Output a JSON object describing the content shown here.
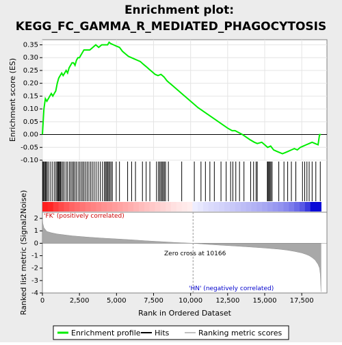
{
  "chart_data": {
    "type": "line",
    "title_line1": "Enrichment plot:",
    "title_line2": "KEGG_FC_GAMMA_R_MEDIATED_PHAGOCYTOSIS",
    "ylabel_top": "Enrichment score (ES)",
    "ylabel_bottom": "Ranked list metric (Signal2Noise)",
    "xlabel": "Rank in Ordered Dataset",
    "xlim": [
      0,
      19200
    ],
    "es_ylim": [
      -0.1,
      0.37
    ],
    "metric_ylim": [
      -4,
      2.5
    ],
    "x_ticks": [
      0,
      2500,
      5000,
      7500,
      10000,
      12500,
      15000,
      17500
    ],
    "x_tick_labels": [
      "0",
      "2,500",
      "5,000",
      "7,500",
      "10,000",
      "12,500",
      "15,000",
      "17,500"
    ],
    "es_y_ticks": [
      -0.1,
      -0.05,
      0.0,
      0.05,
      0.1,
      0.15,
      0.2,
      0.25,
      0.3,
      0.35
    ],
    "es_y_tick_labels": [
      "-0.10",
      "-0.05",
      "0.00",
      "0.05",
      "0.10",
      "0.15",
      "0.20",
      "0.25",
      "0.30",
      "0.35"
    ],
    "metric_y_ticks": [
      2,
      1,
      0,
      -1,
      -2,
      -3,
      -4
    ],
    "metric_y_tick_labels": [
      "2",
      "1",
      "0",
      "-1",
      "-2",
      "-3",
      "-4"
    ],
    "enrichment_profile": {
      "name": "Enrichment profile",
      "color": "#00ee00",
      "x": [
        0,
        50,
        100,
        200,
        300,
        400,
        500,
        600,
        700,
        800,
        900,
        1000,
        1100,
        1200,
        1300,
        1400,
        1500,
        1600,
        1700,
        1800,
        1900,
        2000,
        2100,
        2200,
        2300,
        2400,
        2500,
        2600,
        2700,
        2800,
        2900,
        3000,
        3200,
        3400,
        3600,
        3800,
        4000,
        4200,
        4400,
        4500,
        4600,
        4800,
        5000,
        5200,
        5400,
        5600,
        5800,
        6000,
        6200,
        6400,
        6600,
        6800,
        7000,
        7200,
        7400,
        7600,
        7800,
        8000,
        8200,
        8400,
        8600,
        8800,
        9000,
        9500,
        10000,
        10500,
        11000,
        11500,
        12000,
        12500,
        12800,
        13000,
        13500,
        14000,
        14300,
        14500,
        14800,
        15000,
        15200,
        15400,
        15600,
        15800,
        16000,
        16200,
        16400,
        16600,
        16800,
        17000,
        17200,
        17400,
        17600,
        17800,
        18000,
        18200,
        18400,
        18600,
        18700,
        18800
      ],
      "y": [
        0.0,
        0.05,
        0.1,
        0.14,
        0.13,
        0.14,
        0.15,
        0.16,
        0.15,
        0.16,
        0.17,
        0.2,
        0.22,
        0.23,
        0.24,
        0.23,
        0.24,
        0.25,
        0.24,
        0.26,
        0.27,
        0.28,
        0.28,
        0.27,
        0.29,
        0.3,
        0.3,
        0.31,
        0.32,
        0.33,
        0.33,
        0.33,
        0.33,
        0.34,
        0.35,
        0.34,
        0.35,
        0.35,
        0.35,
        0.36,
        0.355,
        0.35,
        0.345,
        0.34,
        0.325,
        0.315,
        0.305,
        0.3,
        0.295,
        0.29,
        0.285,
        0.275,
        0.265,
        0.255,
        0.245,
        0.235,
        0.23,
        0.235,
        0.225,
        0.21,
        0.2,
        0.19,
        0.18,
        0.155,
        0.13,
        0.105,
        0.085,
        0.065,
        0.045,
        0.025,
        0.015,
        0.015,
        0.0,
        -0.02,
        -0.03,
        -0.035,
        -0.03,
        -0.04,
        -0.05,
        -0.045,
        -0.06,
        -0.065,
        -0.07,
        -0.075,
        -0.07,
        -0.065,
        -0.06,
        -0.055,
        -0.06,
        -0.05,
        -0.045,
        -0.04,
        -0.035,
        -0.03,
        -0.035,
        -0.04,
        0.0,
        0.0
      ]
    },
    "hits": [
      30,
      80,
      140,
      200,
      260,
      330,
      430,
      560,
      690,
      820,
      920,
      1000,
      1060,
      1110,
      1160,
      1220,
      1290,
      1380,
      1470,
      1600,
      1700,
      1820,
      1920,
      2010,
      2100,
      2190,
      2290,
      2410,
      2520,
      2620,
      2720,
      2810,
      2920,
      3030,
      3140,
      3260,
      3370,
      3490,
      3620,
      3760,
      3900,
      4050,
      4180,
      4260,
      4330,
      4400,
      4470,
      4550,
      4630,
      4720,
      4980,
      5200,
      5750,
      6020,
      6280,
      6750,
      7000,
      7250,
      7700,
      7830,
      7920,
      8000,
      8080,
      8150,
      8230,
      8310,
      8500,
      9400,
      10250,
      10700,
      11000,
      11300,
      11600,
      12050,
      12400,
      12700,
      12850,
      13050,
      13300,
      13600,
      14050,
      14250,
      14420,
      14500,
      15180,
      15230,
      15290,
      15360,
      15420,
      15500,
      15950,
      16300,
      16550,
      16800,
      17100,
      17550,
      17700,
      17850,
      18000,
      18200,
      18450,
      18750
    ],
    "metric_curve_x": [
      0,
      30,
      100,
      300,
      600,
      1000,
      2000,
      3000,
      4000,
      5000,
      6000,
      7000,
      8000,
      9000,
      10000,
      10166,
      11000,
      12000,
      13000,
      14000,
      15000,
      16000,
      16500,
      17000,
      17500,
      17800,
      18000,
      18200,
      18400,
      18600,
      18700,
      18750,
      18800
    ],
    "metric_curve_y": [
      2.0,
      1.6,
      1.25,
      0.95,
      0.85,
      0.75,
      0.6,
      0.5,
      0.42,
      0.35,
      0.28,
      0.2,
      0.13,
      0.06,
      0.01,
      0.0,
      -0.08,
      -0.15,
      -0.22,
      -0.3,
      -0.38,
      -0.48,
      -0.55,
      -0.65,
      -0.78,
      -0.9,
      -1.0,
      -1.15,
      -1.35,
      -1.7,
      -2.0,
      -2.5,
      -3.9
    ],
    "zero_cross_label": "Zero cross at 10166",
    "zero_cross": 10166,
    "pos_label": "'FK' (positively correlated)",
    "neg_label": "'HN' (negatively correlated)",
    "legend": [
      {
        "name": "Enrichment profile",
        "color": "#00ee00"
      },
      {
        "name": "Hits",
        "color": "#000000"
      },
      {
        "name": "Ranking metric scores",
        "color": "#c0c0c0"
      }
    ],
    "legend_placement": "bottom"
  }
}
